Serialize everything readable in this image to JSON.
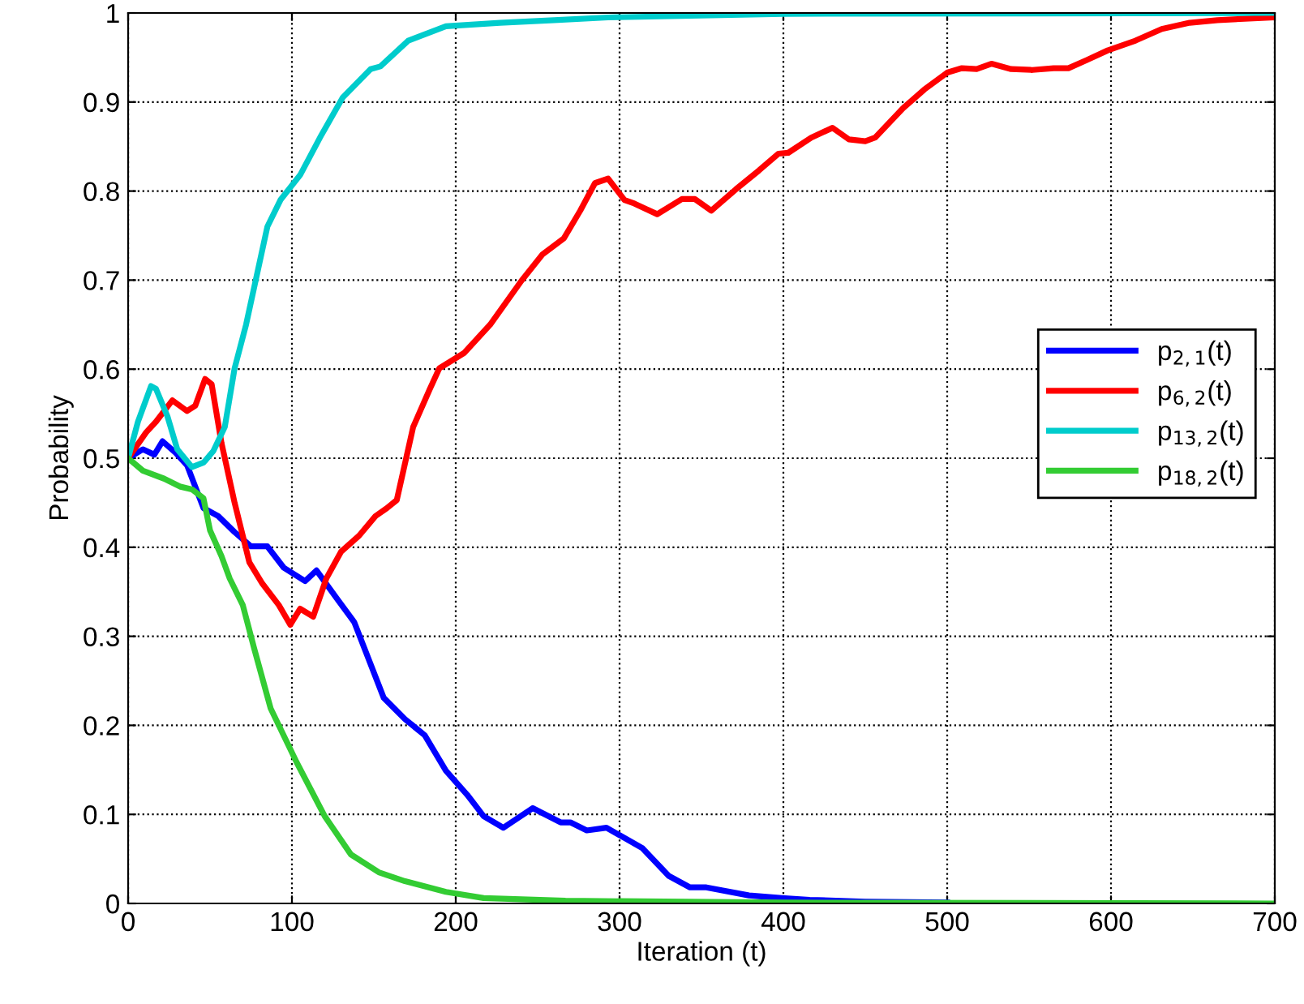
{
  "chart_data": {
    "type": "line",
    "xlabel": "Iteration (t)",
    "ylabel": "Probability",
    "xlim": [
      0,
      700
    ],
    "ylim": [
      0,
      1
    ],
    "xticks": [
      0,
      100,
      200,
      300,
      400,
      500,
      600,
      700
    ],
    "yticks": [
      0,
      0.1,
      0.2,
      0.3,
      0.4,
      0.5,
      0.6,
      0.7,
      0.8,
      0.9,
      1
    ],
    "grid": true,
    "legend": "right",
    "marker": "none",
    "line_style": "solid",
    "series": [
      {
        "name": "p$_{2,1}$(t)",
        "color": "#0000ff",
        "x": [
          0,
          9,
          16,
          21,
          29,
          36,
          46,
          55,
          65,
          75,
          85,
          95,
          108,
          115,
          128,
          138,
          156,
          169,
          181,
          194,
          207,
          217,
          229,
          247,
          264,
          270,
          280,
          292,
          314,
          330,
          343,
          353,
          379,
          399,
          416,
          450,
          500
        ],
        "values": [
          0.5,
          0.51,
          0.504,
          0.519,
          0.506,
          0.492,
          0.444,
          0.435,
          0.417,
          0.401,
          0.401,
          0.377,
          0.362,
          0.374,
          0.341,
          0.316,
          0.231,
          0.207,
          0.189,
          0.149,
          0.122,
          0.098,
          0.085,
          0.107,
          0.091,
          0.091,
          0.082,
          0.085,
          0.062,
          0.031,
          0.018,
          0.018,
          0.009,
          0.006,
          0.004,
          0.002,
          0.001
        ]
      },
      {
        "name": "p$_{6,2}$(t)",
        "color": "#ff0000",
        "x": [
          0,
          11,
          17,
          27,
          36,
          41,
          47,
          51,
          57,
          65,
          74,
          82,
          92,
          99,
          105,
          113,
          121,
          130,
          141,
          151,
          158,
          164,
          174,
          184,
          190,
          205,
          221,
          240,
          253,
          266,
          276,
          285,
          293,
          303,
          309,
          323,
          338,
          346,
          356,
          371,
          385,
          397,
          403,
          417,
          430,
          440,
          450,
          456,
          473,
          486,
          500,
          509,
          518,
          527,
          539,
          552,
          565,
          574,
          585,
          598,
          615,
          631,
          648,
          665,
          700
        ],
        "values": [
          0.5,
          0.529,
          0.541,
          0.565,
          0.553,
          0.559,
          0.589,
          0.583,
          0.517,
          0.45,
          0.383,
          0.359,
          0.335,
          0.313,
          0.331,
          0.322,
          0.365,
          0.395,
          0.413,
          0.435,
          0.444,
          0.453,
          0.535,
          0.577,
          0.601,
          0.618,
          0.65,
          0.699,
          0.729,
          0.747,
          0.778,
          0.809,
          0.814,
          0.79,
          0.786,
          0.774,
          0.791,
          0.791,
          0.778,
          0.802,
          0.823,
          0.842,
          0.843,
          0.86,
          0.871,
          0.858,
          0.856,
          0.86,
          0.893,
          0.914,
          0.933,
          0.938,
          0.937,
          0.943,
          0.937,
          0.936,
          0.938,
          0.938,
          0.947,
          0.958,
          0.969,
          0.982,
          0.989,
          0.992,
          0.995
        ]
      },
      {
        "name": "p$_{13,2}$(t)",
        "color": "#00cccc",
        "x": [
          0,
          6,
          14,
          17,
          24,
          30,
          39,
          46,
          52,
          59,
          65,
          72,
          85,
          93,
          105,
          118,
          131,
          148,
          154,
          171,
          194,
          227,
          260,
          293,
          400,
          700
        ],
        "values": [
          0.5,
          0.541,
          0.581,
          0.578,
          0.547,
          0.51,
          0.49,
          0.495,
          0.508,
          0.535,
          0.601,
          0.65,
          0.76,
          0.79,
          0.818,
          0.863,
          0.905,
          0.937,
          0.94,
          0.969,
          0.985,
          0.989,
          0.992,
          0.995,
          0.999,
          1
        ]
      },
      {
        "name": "p$_{18,2}$(t)",
        "color": "#33cc33",
        "x": [
          0,
          9,
          22,
          32,
          39,
          46,
          50,
          57,
          62,
          70,
          77,
          87,
          103,
          120,
          136,
          153,
          169,
          194,
          217,
          267,
          400,
          700
        ],
        "values": [
          0.5,
          0.486,
          0.477,
          0.468,
          0.465,
          0.455,
          0.419,
          0.39,
          0.365,
          0.335,
          0.286,
          0.219,
          0.158,
          0.098,
          0.055,
          0.035,
          0.025,
          0.013,
          0.006,
          0.003,
          0.001,
          0
        ]
      }
    ]
  }
}
